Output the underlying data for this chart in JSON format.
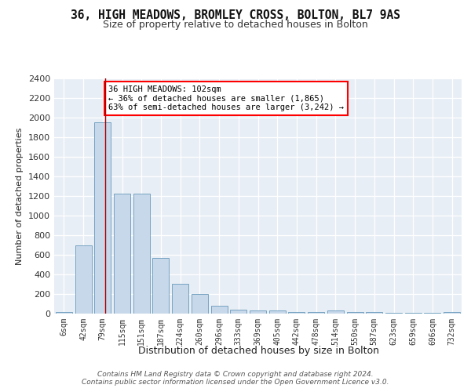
{
  "title1": "36, HIGH MEADOWS, BROMLEY CROSS, BOLTON, BL7 9AS",
  "title2": "Size of property relative to detached houses in Bolton",
  "xlabel": "Distribution of detached houses by size in Bolton",
  "ylabel": "Number of detached properties",
  "categories": [
    "6sqm",
    "42sqm",
    "79sqm",
    "115sqm",
    "151sqm",
    "187sqm",
    "224sqm",
    "260sqm",
    "296sqm",
    "333sqm",
    "369sqm",
    "405sqm",
    "442sqm",
    "478sqm",
    "514sqm",
    "550sqm",
    "587sqm",
    "623sqm",
    "659sqm",
    "696sqm",
    "732sqm"
  ],
  "values": [
    20,
    700,
    1950,
    1225,
    1225,
    570,
    305,
    200,
    80,
    40,
    35,
    35,
    20,
    20,
    30,
    20,
    15,
    10,
    10,
    10,
    15
  ],
  "bar_color": "#c8d8eb",
  "bar_edge_color": "#6699bb",
  "background_color": "#e8eef5",
  "red_line_x": 2.15,
  "annotation_text": "36 HIGH MEADOWS: 102sqm\n← 36% of detached houses are smaller (1,865)\n63% of semi-detached houses are larger (3,242) →",
  "annotation_box_color": "white",
  "annotation_box_edge": "red",
  "footer": "Contains HM Land Registry data © Crown copyright and database right 2024.\nContains public sector information licensed under the Open Government Licence v3.0.",
  "ylim": [
    0,
    2400
  ],
  "yticks": [
    0,
    200,
    400,
    600,
    800,
    1000,
    1200,
    1400,
    1600,
    1800,
    2000,
    2200,
    2400
  ]
}
